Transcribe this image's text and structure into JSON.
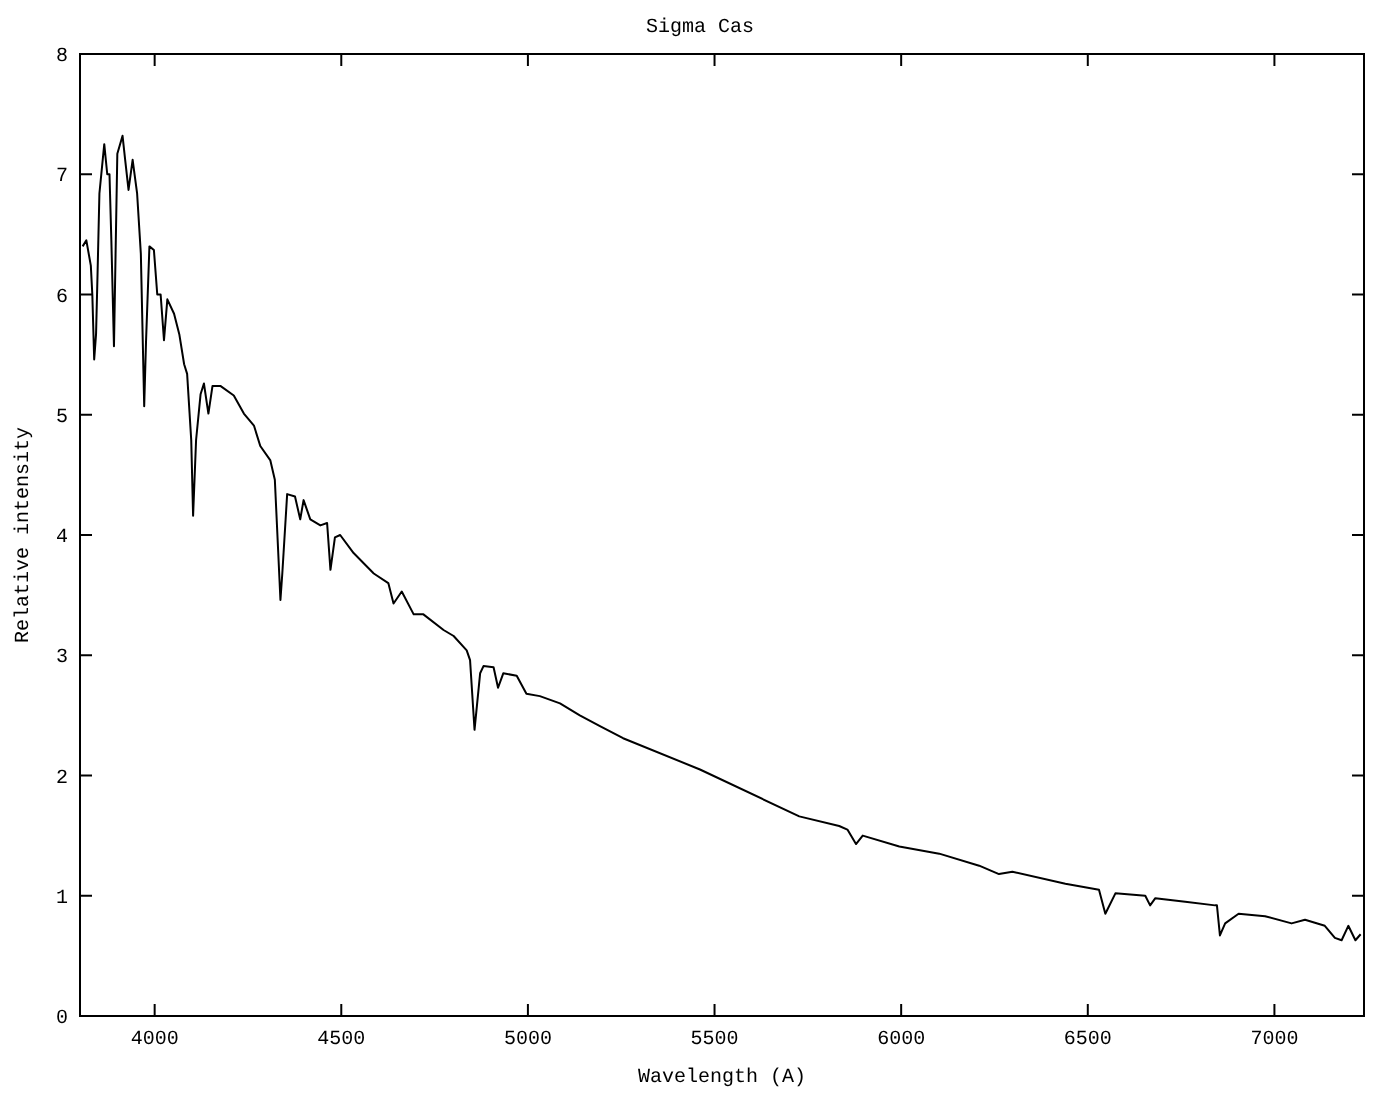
{
  "chart_data": {
    "type": "line",
    "title": "Sigma Cas",
    "xlabel": "Wavelength (A)",
    "ylabel": "Relative intensity",
    "xlim": [
      3800,
      7240
    ],
    "ylim": [
      0,
      8
    ],
    "xticks": [
      4000,
      4500,
      5000,
      5500,
      6000,
      6500,
      7000
    ],
    "yticks": [
      0,
      1,
      2,
      3,
      4,
      5,
      6,
      7,
      8
    ],
    "grid": false,
    "marker": "none",
    "line_style": "solid",
    "series": [
      {
        "color": "#000000",
        "x": [
          3807,
          3817,
          3829,
          3833,
          3838,
          3843,
          3847,
          3852,
          3865,
          3873,
          3879,
          3884,
          3891,
          3900,
          3914,
          3921,
          3930,
          3941,
          3953,
          3963,
          3972,
          3977,
          3986,
          3998,
          4007,
          4016,
          4025,
          4034,
          4052,
          4066,
          4079,
          4087,
          4098,
          4103,
          4111,
          4123,
          4132,
          4144,
          4155,
          4176,
          4212,
          4239,
          4266,
          4283,
          4310,
          4322,
          4337,
          4342,
          4355,
          4376,
          4390,
          4399,
          4417,
          4444,
          4462,
          4471,
          4483,
          4497,
          4533,
          4587,
          4626,
          4640,
          4662,
          4694,
          4720,
          4774,
          4801,
          4836,
          4845,
          4857,
          4872,
          4881,
          4908,
          4920,
          4934,
          4970,
          4996,
          5032,
          5086,
          5139,
          5193,
          5255,
          5461,
          5727,
          5834,
          5856,
          5879,
          5897,
          5995,
          6102,
          6209,
          6262,
          6298,
          6440,
          6530,
          6547,
          6574,
          6654,
          6667,
          6681,
          6761,
          6841,
          6846,
          6854,
          6868,
          6904,
          6975,
          7046,
          7082,
          7135,
          7162,
          7180,
          7198,
          7217,
          7231
        ],
        "values": [
          6.4,
          6.45,
          6.24,
          6.0,
          5.46,
          5.67,
          6.17,
          6.84,
          7.25,
          7.0,
          7.0,
          6.45,
          5.57,
          7.17,
          7.32,
          7.12,
          6.87,
          7.12,
          6.84,
          6.34,
          5.07,
          5.62,
          6.4,
          6.37,
          6.0,
          6.0,
          5.62,
          5.96,
          5.84,
          5.67,
          5.42,
          5.34,
          4.79,
          4.16,
          4.79,
          5.17,
          5.26,
          5.01,
          5.24,
          5.24,
          5.16,
          5.01,
          4.91,
          4.74,
          4.62,
          4.46,
          3.46,
          3.68,
          4.34,
          4.32,
          4.13,
          4.29,
          4.13,
          4.08,
          4.1,
          3.71,
          3.98,
          4.0,
          3.85,
          3.68,
          3.6,
          3.43,
          3.53,
          3.34,
          3.34,
          3.21,
          3.16,
          3.04,
          2.96,
          2.38,
          2.85,
          2.91,
          2.9,
          2.73,
          2.85,
          2.83,
          2.68,
          2.66,
          2.6,
          2.5,
          2.41,
          2.31,
          2.05,
          1.66,
          1.58,
          1.55,
          1.43,
          1.5,
          1.41,
          1.35,
          1.25,
          1.18,
          1.2,
          1.1,
          1.05,
          0.85,
          1.02,
          1.0,
          0.92,
          0.98,
          0.95,
          0.92,
          0.92,
          0.67,
          0.77,
          0.85,
          0.83,
          0.77,
          0.8,
          0.75,
          0.65,
          0.63,
          0.75,
          0.63,
          0.68
        ]
      }
    ]
  }
}
